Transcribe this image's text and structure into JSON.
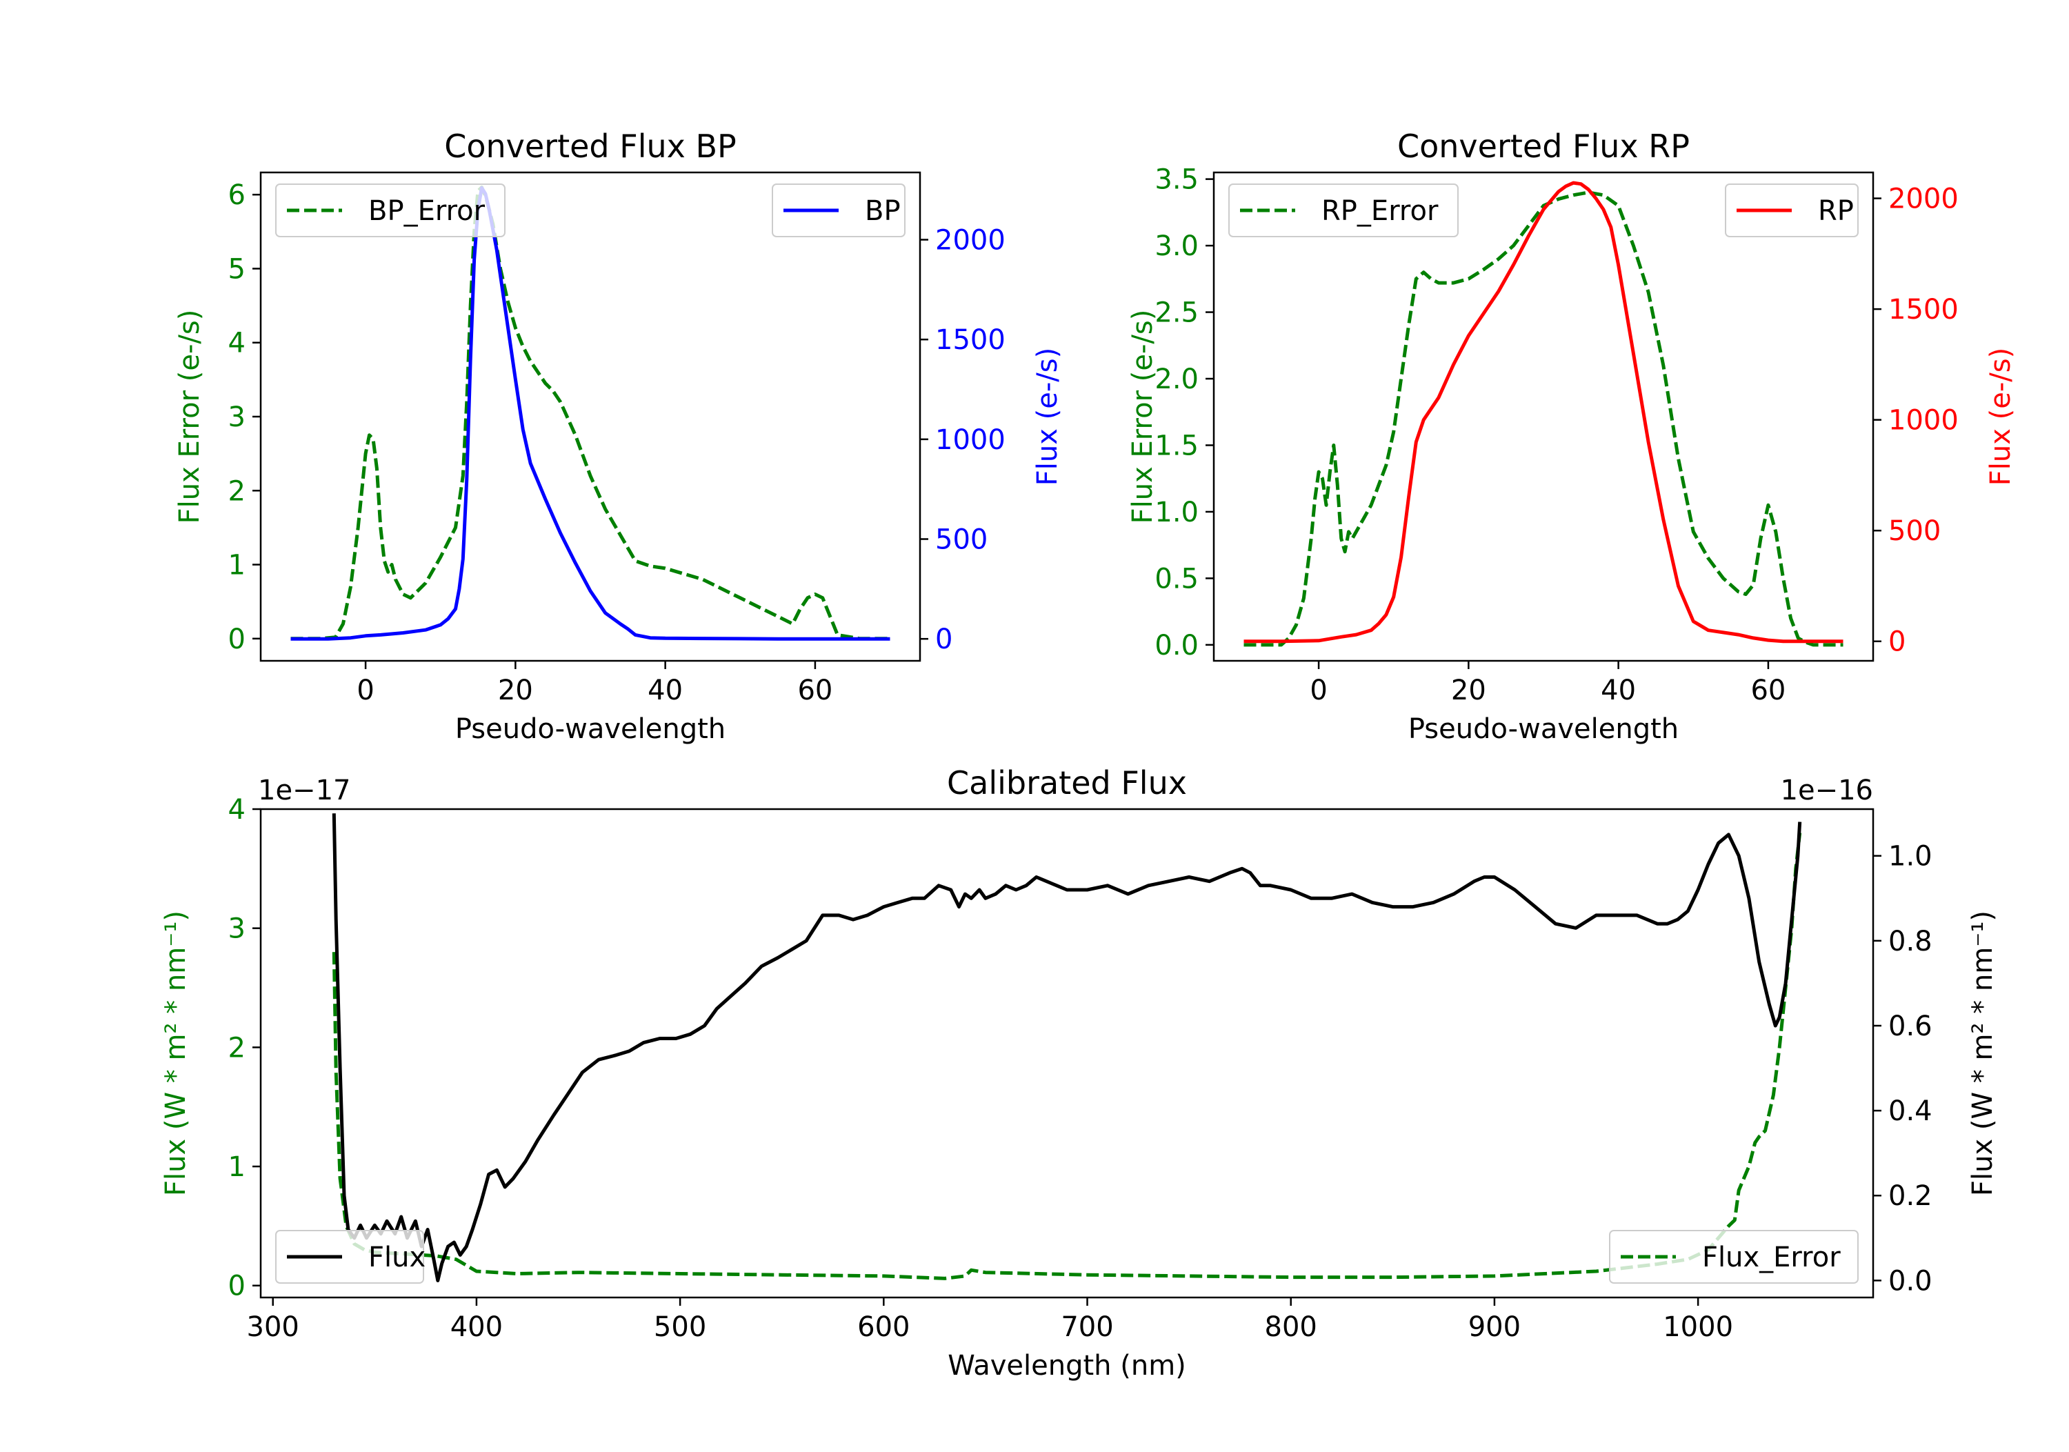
{
  "chart_data": [
    {
      "type": "line",
      "title": "Converted Flux BP",
      "xlabel": "Pseudo-wavelength",
      "ylabel_left": "Flux Error (e-/s)",
      "ylabel_right": "Flux (e-/s)",
      "xlim": [
        -14,
        74
      ],
      "ylim_left": [
        -0.3,
        6.3
      ],
      "ylim_right": [
        -110,
        2337
      ],
      "x_ticks": [
        0,
        20,
        40,
        60
      ],
      "y_ticks_left": [
        0,
        1,
        2,
        3,
        4,
        5,
        6
      ],
      "y_ticks_right": [
        0,
        500,
        1000,
        1500,
        2000
      ],
      "legend_left": "upper left",
      "legend_right": "upper right",
      "series": [
        {
          "name": "BP_Error",
          "axis": "left",
          "style": "dashed",
          "color": "#008000",
          "x": [
            -10,
            -6,
            -4,
            -3,
            -2,
            -1,
            0,
            0.5,
            1,
            1.5,
            2,
            2.5,
            3,
            3.5,
            4,
            5,
            6,
            8,
            10,
            12,
            13,
            13.5,
            14,
            14.5,
            15,
            15.5,
            16,
            16.5,
            17,
            17.5,
            18,
            19,
            20,
            21,
            22,
            23,
            24,
            25,
            26,
            28,
            30,
            32,
            34,
            36,
            38,
            40,
            45,
            50,
            55,
            57,
            58,
            59,
            60,
            61,
            62,
            63,
            66,
            70
          ],
          "y": [
            0,
            0,
            0.02,
            0.2,
            0.7,
            1.5,
            2.5,
            2.75,
            2.7,
            2.3,
            1.5,
            1.05,
            0.9,
            1.0,
            0.8,
            0.6,
            0.55,
            0.75,
            1.1,
            1.5,
            2.2,
            3.2,
            4.5,
            5.5,
            6.05,
            6.1,
            5.98,
            5.8,
            5.6,
            5.3,
            5.0,
            4.55,
            4.2,
            3.95,
            3.75,
            3.6,
            3.45,
            3.35,
            3.2,
            2.75,
            2.2,
            1.75,
            1.4,
            1.05,
            0.98,
            0.95,
            0.8,
            0.55,
            0.3,
            0.2,
            0.4,
            0.55,
            0.6,
            0.55,
            0.3,
            0.05,
            0,
            0
          ]
        },
        {
          "name": "BP",
          "axis": "right",
          "style": "solid",
          "color": "#0000ff",
          "x": [
            -10,
            -5,
            -2,
            0,
            2,
            5,
            8,
            10,
            11,
            12,
            12.5,
            13,
            13.5,
            14,
            14.5,
            15,
            15.5,
            16,
            16.5,
            17,
            17.5,
            18,
            19,
            20,
            21,
            22,
            24,
            26,
            28,
            30,
            32,
            34,
            35,
            36,
            38,
            40,
            45,
            50,
            55,
            60,
            65,
            70
          ],
          "y": [
            0,
            0,
            5,
            15,
            20,
            30,
            45,
            70,
            100,
            150,
            250,
            400,
            800,
            1400,
            1900,
            2150,
            2260,
            2230,
            2150,
            2050,
            1950,
            1820,
            1560,
            1300,
            1050,
            880,
            700,
            530,
            380,
            240,
            130,
            75,
            50,
            20,
            5,
            3,
            2,
            1,
            0,
            0,
            0,
            0
          ]
        }
      ]
    },
    {
      "type": "line",
      "title": "Converted Flux RP",
      "xlabel": "Pseudo-wavelength",
      "ylabel_left": "Flux Error (e-/s)",
      "ylabel_right": "Flux (e-/s)",
      "xlim": [
        -14,
        74
      ],
      "ylim_left": [
        -0.12,
        3.55
      ],
      "ylim_right": [
        -88,
        2117
      ],
      "x_ticks": [
        0,
        20,
        40,
        60
      ],
      "y_ticks_left": [
        0.0,
        0.5,
        1.0,
        1.5,
        2.0,
        2.5,
        3.0,
        3.5
      ],
      "y_ticks_right": [
        0,
        500,
        1000,
        1500,
        2000
      ],
      "legend_left": "upper left",
      "legend_right": "upper right",
      "series": [
        {
          "name": "RP_Error",
          "axis": "left",
          "style": "dashed",
          "color": "#008000",
          "x": [
            -10,
            -5,
            -4,
            -3,
            -2,
            -1,
            -0.5,
            0,
            0.5,
            1,
            1.5,
            2,
            2.5,
            3,
            3.5,
            4,
            4.5,
            5,
            6,
            7,
            8,
            9,
            10,
            11,
            12,
            13,
            14,
            15,
            16,
            18,
            20,
            22,
            24,
            26,
            28,
            30,
            32,
            34,
            36,
            38,
            40,
            42,
            44,
            46,
            48,
            50,
            52,
            54,
            55,
            56,
            57,
            58,
            59,
            60,
            61,
            62,
            63,
            64,
            65,
            66,
            70
          ],
          "y": [
            0,
            0,
            0.05,
            0.15,
            0.35,
            0.8,
            1.1,
            1.3,
            1.25,
            1.05,
            1.3,
            1.5,
            1.2,
            0.8,
            0.7,
            0.85,
            0.8,
            0.85,
            0.95,
            1.05,
            1.2,
            1.35,
            1.6,
            2.0,
            2.4,
            2.75,
            2.8,
            2.75,
            2.72,
            2.72,
            2.75,
            2.82,
            2.9,
            3.0,
            3.15,
            3.3,
            3.35,
            3.38,
            3.4,
            3.38,
            3.3,
            3.0,
            2.65,
            2.1,
            1.4,
            0.85,
            0.65,
            0.5,
            0.45,
            0.4,
            0.38,
            0.45,
            0.8,
            1.05,
            0.85,
            0.5,
            0.2,
            0.05,
            0.02,
            0,
            0
          ]
        },
        {
          "name": "RP",
          "axis": "right",
          "style": "solid",
          "color": "#ff0000",
          "x": [
            -10,
            -5,
            0,
            3,
            5,
            7,
            8,
            9,
            10,
            11,
            12,
            13,
            14,
            15,
            16,
            18,
            20,
            22,
            24,
            26,
            28,
            30,
            32,
            33,
            34,
            35,
            36,
            37,
            38,
            39,
            40,
            42,
            44,
            46,
            48,
            50,
            52,
            54,
            56,
            58,
            60,
            62,
            65,
            70
          ],
          "y": [
            0,
            0,
            3,
            20,
            30,
            50,
            80,
            120,
            200,
            380,
            650,
            900,
            1000,
            1050,
            1100,
            1250,
            1380,
            1480,
            1580,
            1700,
            1830,
            1950,
            2030,
            2055,
            2070,
            2065,
            2040,
            2000,
            1950,
            1870,
            1700,
            1300,
            900,
            550,
            250,
            90,
            50,
            40,
            30,
            15,
            5,
            0,
            0,
            0
          ]
        }
      ]
    },
    {
      "type": "line",
      "title": "Calibrated Flux",
      "xlabel": "Wavelength (nm)",
      "ylabel_left": "Flux (W * m² * nm⁻¹)",
      "ylabel_right": "Flux (W * m² * nm⁻¹)",
      "offset_left": "1e−17",
      "offset_right": "1e−16",
      "xlim": [
        294,
        1086
      ],
      "ylim_left": [
        -0.1,
        4.0
      ],
      "ylim_right": [
        -0.04,
        1.11
      ],
      "x_ticks": [
        300,
        400,
        500,
        600,
        700,
        800,
        900,
        1000
      ],
      "y_ticks_left": [
        0,
        1,
        2,
        3,
        4
      ],
      "y_ticks_right": [
        0.0,
        0.2,
        0.4,
        0.6,
        0.8,
        1.0
      ],
      "legend_left": "lower left",
      "legend_right": "lower right",
      "series": [
        {
          "name": "Flux",
          "axis": "right",
          "style": "solid",
          "color": "#000000",
          "x": [
            330,
            331,
            333,
            335,
            337,
            340,
            343,
            346,
            350,
            353,
            356,
            360,
            363,
            366,
            370,
            373,
            376,
            379,
            381,
            383,
            386,
            389,
            392,
            395,
            398,
            402,
            406,
            410,
            414,
            418,
            424,
            430,
            438,
            445,
            452,
            460,
            468,
            475,
            482,
            490,
            498,
            505,
            512,
            518,
            525,
            532,
            540,
            548,
            555,
            562,
            570,
            578,
            585,
            592,
            600,
            607,
            614,
            620,
            627,
            633,
            637,
            640,
            643,
            647,
            650,
            655,
            660,
            665,
            670,
            675,
            680,
            685,
            690,
            700,
            710,
            720,
            730,
            740,
            750,
            760,
            770,
            776,
            780,
            785,
            790,
            800,
            810,
            820,
            830,
            840,
            850,
            860,
            870,
            880,
            890,
            895,
            900,
            910,
            920,
            930,
            940,
            950,
            960,
            970,
            980,
            985,
            990,
            995,
            1000,
            1005,
            1010,
            1015,
            1020,
            1025,
            1030,
            1035,
            1038,
            1040,
            1043,
            1046,
            1049,
            1050
          ],
          "y": [
            1.1,
            0.85,
            0.5,
            0.2,
            0.12,
            0.1,
            0.13,
            0.1,
            0.13,
            0.11,
            0.14,
            0.11,
            0.15,
            0.1,
            0.14,
            0.08,
            0.12,
            0.05,
            0.0,
            0.04,
            0.08,
            0.09,
            0.06,
            0.08,
            0.12,
            0.18,
            0.25,
            0.26,
            0.22,
            0.24,
            0.28,
            0.33,
            0.39,
            0.44,
            0.49,
            0.52,
            0.53,
            0.54,
            0.56,
            0.57,
            0.57,
            0.58,
            0.6,
            0.64,
            0.67,
            0.7,
            0.74,
            0.76,
            0.78,
            0.8,
            0.86,
            0.86,
            0.85,
            0.86,
            0.88,
            0.89,
            0.9,
            0.9,
            0.93,
            0.92,
            0.88,
            0.91,
            0.9,
            0.92,
            0.9,
            0.91,
            0.93,
            0.92,
            0.93,
            0.95,
            0.94,
            0.93,
            0.92,
            0.92,
            0.93,
            0.91,
            0.93,
            0.94,
            0.95,
            0.94,
            0.96,
            0.97,
            0.96,
            0.93,
            0.93,
            0.92,
            0.9,
            0.9,
            0.91,
            0.89,
            0.88,
            0.88,
            0.89,
            0.91,
            0.94,
            0.95,
            0.95,
            0.92,
            0.88,
            0.84,
            0.83,
            0.86,
            0.86,
            0.86,
            0.84,
            0.84,
            0.85,
            0.87,
            0.92,
            0.98,
            1.03,
            1.05,
            1.0,
            0.9,
            0.75,
            0.65,
            0.6,
            0.62,
            0.7,
            0.85,
            1.0,
            1.08
          ]
        },
        {
          "name": "Flux_Error",
          "axis": "left",
          "style": "dashed",
          "color": "#008000",
          "x": [
            330,
            331,
            333,
            336,
            340,
            345,
            350,
            360,
            370,
            380,
            390,
            400,
            420,
            450,
            500,
            550,
            600,
            630,
            640,
            643,
            650,
            700,
            750,
            800,
            850,
            900,
            950,
            980,
            995,
            1005,
            1010,
            1015,
            1018,
            1020,
            1025,
            1028,
            1030,
            1033,
            1037,
            1040,
            1043,
            1046,
            1048,
            1050
          ],
          "y": [
            2.8,
            1.8,
            0.9,
            0.5,
            0.35,
            0.3,
            0.28,
            0.27,
            0.26,
            0.25,
            0.22,
            0.12,
            0.1,
            0.11,
            0.1,
            0.09,
            0.08,
            0.06,
            0.08,
            0.13,
            0.11,
            0.09,
            0.08,
            0.07,
            0.07,
            0.08,
            0.12,
            0.18,
            0.22,
            0.3,
            0.4,
            0.5,
            0.55,
            0.8,
            1.0,
            1.2,
            1.25,
            1.3,
            1.6,
            2.0,
            2.5,
            3.0,
            3.5,
            3.8
          ]
        }
      ]
    }
  ]
}
